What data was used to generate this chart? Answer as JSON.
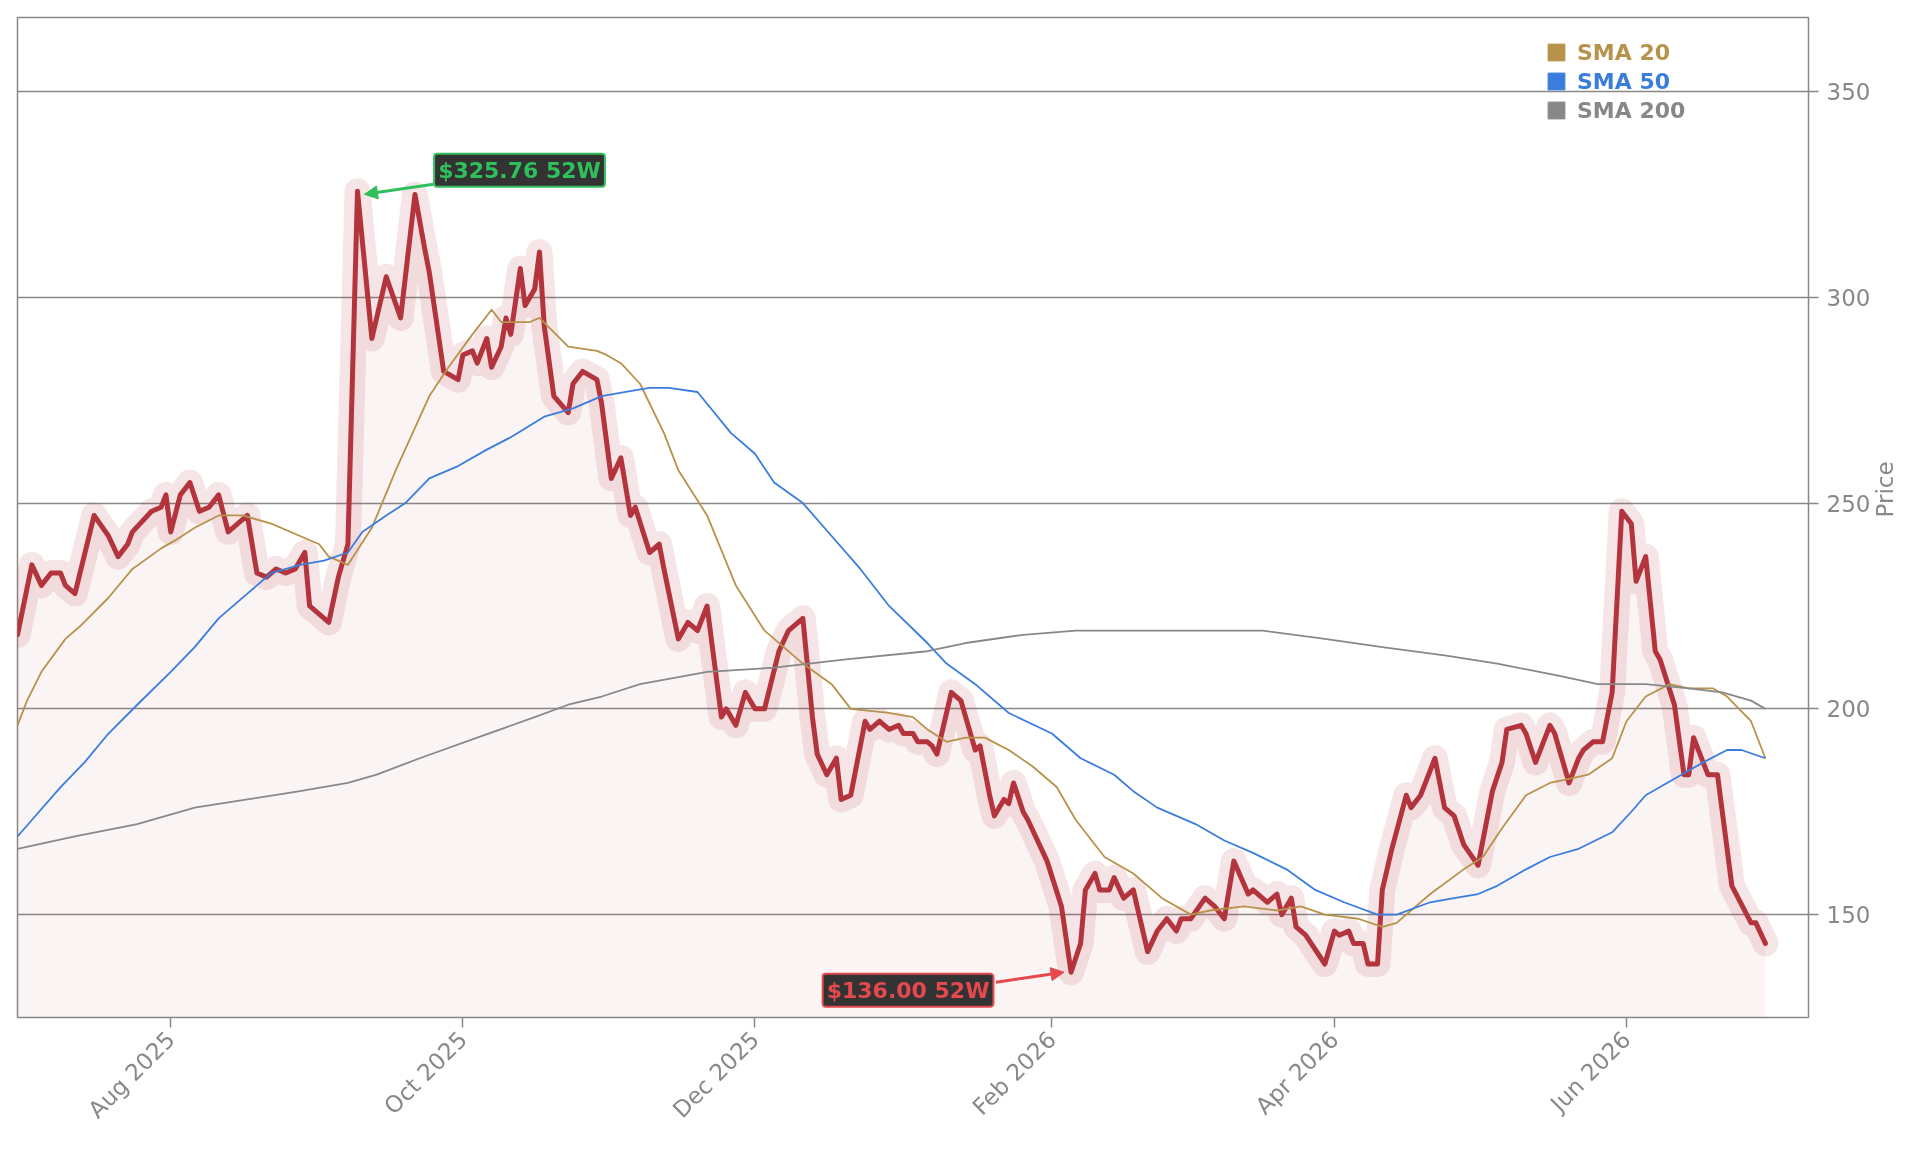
{
  "chart_data": {
    "type": "line",
    "ylabel": "Price",
    "xlim": [
      "2025-06-30",
      "2026-07-09"
    ],
    "ylim": [
      125,
      368
    ],
    "xticks": [
      {
        "value": "2025-08-01",
        "label": "Aug 2025"
      },
      {
        "value": "2025-10-01",
        "label": "Oct 2025"
      },
      {
        "value": "2025-12-01",
        "label": "Dec 2025"
      },
      {
        "value": "2026-02-01",
        "label": "Feb 2026"
      },
      {
        "value": "2026-04-01",
        "label": "Apr 2026"
      },
      {
        "value": "2026-06-01",
        "label": "Jun 2026"
      }
    ],
    "yticks": [
      150,
      200,
      250,
      300,
      350
    ],
    "grid": "y",
    "legend": "top right",
    "annotations": [
      {
        "text": "$325.76 52W",
        "x": "2025-09-09",
        "y": 325.76
      },
      {
        "text": "$136.00 52W",
        "x": "2026-02-05",
        "y": 136.0
      }
    ],
    "series": [
      {
        "type": "area",
        "color": "#b3343c",
        "x": [
          "2025-06-30",
          "2025-07-03",
          "2025-07-05",
          "2025-07-07",
          "2025-07-09",
          "2025-07-10",
          "2025-07-12",
          "2025-07-16",
          "2025-07-19",
          "2025-07-21",
          "2025-07-23",
          "2025-07-24",
          "2025-07-28",
          "2025-07-30",
          "2025-07-31",
          "2025-08-01",
          "2025-08-03",
          "2025-08-05",
          "2025-08-07",
          "2025-08-09",
          "2025-08-11",
          "2025-08-13",
          "2025-08-15",
          "2025-08-17",
          "2025-08-19",
          "2025-08-21",
          "2025-08-23",
          "2025-08-25",
          "2025-08-27",
          "2025-08-29",
          "2025-08-30",
          "2025-09-01",
          "2025-09-03",
          "2025-09-05",
          "2025-09-07",
          "2025-09-09",
          "2025-09-12",
          "2025-09-15",
          "2025-09-18",
          "2025-09-21",
          "2025-09-23",
          "2025-09-24",
          "2025-09-26",
          "2025-09-27",
          "2025-09-30",
          "2025-10-01",
          "2025-10-03",
          "2025-10-04",
          "2025-10-06",
          "2025-10-07",
          "2025-10-09",
          "2025-10-10",
          "2025-10-11",
          "2025-10-13",
          "2025-10-14",
          "2025-10-16",
          "2025-10-17",
          "2025-10-18",
          "2025-10-20",
          "2025-10-23",
          "2025-10-24",
          "2025-10-26",
          "2025-10-29",
          "2025-10-30",
          "2025-11-01",
          "2025-11-03",
          "2025-11-05",
          "2025-11-06",
          "2025-11-09",
          "2025-11-11",
          "2025-11-12",
          "2025-11-15",
          "2025-11-17",
          "2025-11-19",
          "2025-11-21",
          "2025-11-24",
          "2025-11-25",
          "2025-11-27",
          "2025-11-29",
          "2025-12-01",
          "2025-12-03",
          "2025-12-06",
          "2025-12-08",
          "2025-12-11",
          "2025-12-13",
          "2025-12-14",
          "2025-12-16",
          "2025-12-18",
          "2025-12-19",
          "2025-12-21",
          "2025-12-24",
          "2025-12-25",
          "2025-12-27",
          "2025-12-29",
          "2025-12-31",
          "2026-01-01",
          "2026-01-03",
          "2026-01-04",
          "2026-01-06",
          "2026-01-07",
          "2026-01-08",
          "2026-01-11",
          "2026-01-13",
          "2026-01-16",
          "2026-01-17",
          "2026-01-19",
          "2026-01-20",
          "2026-01-22",
          "2026-01-23",
          "2026-01-24",
          "2026-01-26",
          "2026-01-27",
          "2026-01-31",
          "2026-02-03",
          "2026-02-05",
          "2026-02-07",
          "2026-02-08",
          "2026-02-10",
          "2026-02-11",
          "2026-02-13",
          "2026-02-14",
          "2026-02-16",
          "2026-02-18",
          "2026-02-21",
          "2026-02-23",
          "2026-02-25",
          "2026-02-27",
          "2026-02-28",
          "2026-03-02",
          "2026-03-05",
          "2026-03-07",
          "2026-03-09",
          "2026-03-11",
          "2026-03-14",
          "2026-03-15",
          "2026-03-18",
          "2026-03-20",
          "2026-03-21",
          "2026-03-23",
          "2026-03-24",
          "2026-03-26",
          "2026-03-30",
          "2026-04-01",
          "2026-04-02",
          "2026-04-04",
          "2026-04-05",
          "2026-04-07",
          "2026-04-08",
          "2026-04-10",
          "2026-04-11",
          "2026-04-13",
          "2026-04-16",
          "2026-04-17",
          "2026-04-19",
          "2026-04-22",
          "2026-04-24",
          "2026-04-26",
          "2026-04-28",
          "2026-05-01",
          "2026-05-04",
          "2026-05-06",
          "2026-05-07",
          "2026-05-10",
          "2026-05-11",
          "2026-05-13",
          "2026-05-16",
          "2026-05-17",
          "2026-05-20",
          "2026-05-22",
          "2026-05-23",
          "2026-05-25",
          "2026-05-27",
          "2026-05-29",
          "2026-05-31",
          "2026-06-02",
          "2026-06-03",
          "2026-06-05",
          "2026-06-07",
          "2026-06-08",
          "2026-06-11",
          "2026-06-13",
          "2026-06-14",
          "2026-06-15",
          "2026-06-18",
          "2026-06-20",
          "2026-06-23",
          "2026-06-27",
          "2026-06-28",
          "2026-06-30"
        ],
        "values": [
          218,
          235,
          230,
          233,
          233,
          230,
          228,
          247,
          242,
          237,
          240,
          243,
          248,
          249,
          252,
          243,
          252,
          255,
          248,
          249,
          252,
          243,
          245,
          247,
          233,
          232,
          234,
          233,
          234,
          238,
          225,
          223,
          221,
          232,
          240,
          325.76,
          290,
          305,
          295,
          325,
          312,
          306,
          290,
          282,
          280,
          286,
          287,
          284,
          290,
          283,
          288,
          295,
          291,
          307,
          298,
          302,
          311,
          293,
          276,
          272,
          279,
          282,
          280,
          274,
          256,
          261,
          247,
          249,
          238,
          240,
          234,
          217,
          221,
          219,
          225,
          198,
          200,
          196,
          204,
          200,
          200,
          214,
          219,
          222,
          198,
          189,
          184,
          188,
          178,
          179,
          197,
          195,
          197,
          195,
          196,
          194,
          194,
          192,
          192,
          191,
          189,
          204,
          202,
          190,
          191,
          179,
          174,
          178,
          177,
          182,
          175,
          173,
          163,
          152,
          136.0,
          143,
          156,
          160,
          156,
          156,
          159,
          154,
          156,
          141,
          146,
          149,
          146,
          149,
          149,
          154,
          152,
          149,
          163,
          155,
          156,
          153,
          155,
          150,
          154,
          147,
          145,
          138,
          146,
          145,
          146,
          143,
          143,
          138,
          138,
          156,
          166,
          179,
          176,
          179,
          188,
          176,
          174,
          167,
          162,
          180,
          187,
          195,
          196,
          194,
          187,
          196,
          194,
          182,
          188,
          190,
          192,
          192,
          204,
          248,
          245,
          231,
          237,
          214,
          212,
          201,
          184,
          184,
          193,
          184,
          184,
          157,
          148,
          148,
          143
        ]
      },
      {
        "name": "SMA 20",
        "color": "#b8924a",
        "x": [
          "2025-06-30",
          "2025-07-02",
          "2025-07-05",
          "2025-07-10",
          "2025-07-13",
          "2025-07-19",
          "2025-07-24",
          "2025-07-30",
          "2025-08-02",
          "2025-08-06",
          "2025-08-11",
          "2025-08-16",
          "2025-08-22",
          "2025-08-28",
          "2025-09-01",
          "2025-09-03",
          "2025-09-07",
          "2025-09-12",
          "2025-09-17",
          "2025-09-24",
          "2025-09-28",
          "2025-10-03",
          "2025-10-07",
          "2025-10-09",
          "2025-10-15",
          "2025-10-17",
          "2025-10-23",
          "2025-10-29",
          "2025-10-31",
          "2025-11-03",
          "2025-11-07",
          "2025-11-12",
          "2025-11-15",
          "2025-11-21",
          "2025-11-27",
          "2025-12-03",
          "2025-12-11",
          "2025-12-17",
          "2025-12-21",
          "2025-12-29",
          "2026-01-03",
          "2026-01-06",
          "2026-01-10",
          "2026-01-14",
          "2026-01-18",
          "2026-01-23",
          "2026-01-28",
          "2026-02-02",
          "2026-02-06",
          "2026-02-12",
          "2026-02-18",
          "2026-02-24",
          "2026-03-02",
          "2026-03-06",
          "2026-03-13",
          "2026-03-20",
          "2026-03-25",
          "2026-03-30",
          "2026-04-06",
          "2026-04-11",
          "2026-04-14",
          "2026-04-21",
          "2026-04-28",
          "2026-05-02",
          "2026-05-06",
          "2026-05-11",
          "2026-05-16",
          "2026-05-20",
          "2026-05-24",
          "2026-05-29",
          "2026-06-01",
          "2026-06-05",
          "2026-06-10",
          "2026-06-14",
          "2026-06-19",
          "2026-06-22",
          "2026-06-27",
          "2026-06-30"
        ],
        "values": [
          196,
          202,
          209,
          217,
          220,
          227,
          234,
          239,
          241,
          244,
          247,
          247,
          245,
          242,
          240,
          237,
          235,
          244,
          258,
          276,
          283,
          291,
          297,
          294,
          294,
          295,
          288,
          287,
          286,
          284,
          279,
          267,
          258,
          247,
          230,
          219,
          211,
          206,
          200,
          199,
          198,
          195,
          192,
          193,
          193,
          190,
          186,
          181,
          173,
          164,
          160,
          154,
          150,
          151,
          152,
          151,
          152,
          150,
          149,
          147,
          148,
          155,
          161,
          164,
          171,
          179,
          182,
          183,
          184,
          188,
          197,
          203,
          206,
          205,
          205,
          203,
          197,
          188
        ]
      },
      {
        "name": "SMA 50",
        "color": "#3b7ddd",
        "x": [
          "2025-06-30",
          "2025-07-03",
          "2025-07-09",
          "2025-07-14",
          "2025-07-19",
          "2025-07-25",
          "2025-08-01",
          "2025-08-06",
          "2025-08-11",
          "2025-08-17",
          "2025-08-22",
          "2025-08-28",
          "2025-09-02",
          "2025-09-07",
          "2025-09-10",
          "2025-09-15",
          "2025-09-19",
          "2025-09-24",
          "2025-09-30",
          "2025-10-06",
          "2025-10-11",
          "2025-10-18",
          "2025-10-24",
          "2025-10-30",
          "2025-11-04",
          "2025-11-09",
          "2025-11-13",
          "2025-11-19",
          "2025-11-26",
          "2025-12-01",
          "2025-12-05",
          "2025-12-11",
          "2025-12-17",
          "2025-12-23",
          "2025-12-29",
          "2026-01-06",
          "2026-01-10",
          "2026-01-16",
          "2026-01-23",
          "2026-02-01",
          "2026-02-07",
          "2026-02-14",
          "2026-02-18",
          "2026-02-23",
          "2026-03-03",
          "2026-03-09",
          "2026-03-15",
          "2026-03-22",
          "2026-03-28",
          "2026-04-03",
          "2026-04-10",
          "2026-04-14",
          "2026-04-21",
          "2026-04-26",
          "2026-05-01",
          "2026-05-05",
          "2026-05-11",
          "2026-05-16",
          "2026-05-22",
          "2026-05-29",
          "2026-06-02",
          "2026-06-05",
          "2026-06-11",
          "2026-06-17",
          "2026-06-22",
          "2026-06-25",
          "2026-06-30"
        ],
        "values": [
          169,
          173,
          181,
          187,
          194,
          201,
          209,
          215,
          222,
          228,
          233,
          235,
          236,
          238,
          243,
          247,
          250,
          256,
          259,
          263,
          266,
          271,
          273,
          276,
          277,
          278,
          278,
          277,
          267,
          262,
          255,
          250,
          242,
          234,
          225,
          216,
          211,
          206,
          199,
          194,
          188,
          184,
          180,
          176,
          172,
          168,
          165,
          161,
          156,
          153,
          150,
          150,
          153,
          154,
          155,
          157,
          161,
          164,
          166,
          170,
          175,
          179,
          183,
          187,
          190,
          190,
          188
        ]
      },
      {
        "name": "SMA 200",
        "color": "#888888",
        "x": [
          "2025-06-30",
          "2025-07-12",
          "2025-07-25",
          "2025-08-06",
          "2025-08-17",
          "2025-08-28",
          "2025-09-07",
          "2025-09-13",
          "2025-09-22",
          "2025-10-04",
          "2025-10-16",
          "2025-10-23",
          "2025-10-30",
          "2025-11-07",
          "2025-11-21",
          "2025-12-05",
          "2025-12-20",
          "2026-01-06",
          "2026-01-14",
          "2026-01-26",
          "2026-02-06",
          "2026-02-18",
          "2026-03-09",
          "2026-03-17",
          "2026-03-30",
          "2026-04-11",
          "2026-04-24",
          "2026-05-05",
          "2026-05-18",
          "2026-05-26",
          "2026-06-05",
          "2026-06-14",
          "2026-06-21",
          "2026-06-27",
          "2026-06-30"
        ],
        "values": [
          166,
          169,
          172,
          176,
          178,
          180,
          182,
          184,
          188,
          193,
          198,
          201,
          203,
          206,
          209,
          210,
          212,
          214,
          216,
          218,
          219,
          219,
          219,
          219,
          217,
          215,
          213,
          211,
          208,
          206,
          206,
          205,
          204,
          202,
          200
        ]
      }
    ]
  }
}
